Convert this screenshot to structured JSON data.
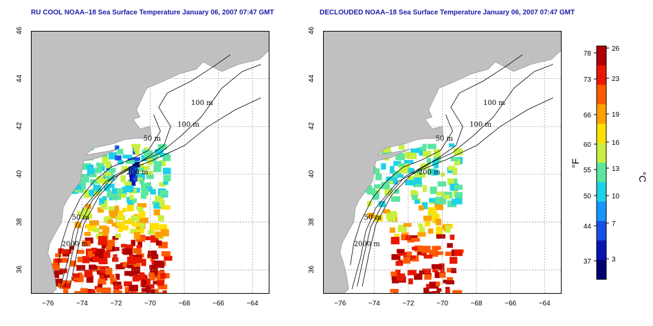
{
  "panels": [
    {
      "id": "ru-cool",
      "title": "RU COOL NOAA–18 Sea Surface Temperature January 06, 2007 07:47 GMT",
      "declouded": false
    },
    {
      "id": "declouded",
      "title": "DECLOUDED NOAA–18 Sea Surface Temperature January 06, 2007 07:47 GMT",
      "declouded": true
    }
  ],
  "axes": {
    "x_ticks": [
      "−76",
      "−74",
      "−72",
      "−70",
      "−68",
      "−66",
      "−64"
    ],
    "y_ticks": [
      "36",
      "38",
      "40",
      "42",
      "44",
      "46"
    ],
    "x_range": [
      -77,
      -63
    ],
    "y_range": [
      35,
      46
    ],
    "grid": true
  },
  "contour_labels": [
    "100 m",
    "100 m",
    "50 m",
    "200 m",
    "50 m",
    "2000 m"
  ],
  "colorbar": {
    "fahrenheit_label": "°F",
    "celsius_label": "°C",
    "fahrenheit_ticks": [
      "78",
      "73",
      "66",
      "60",
      "55",
      "50",
      "44",
      "37"
    ],
    "celsius_ticks": [
      "26",
      "23",
      "19",
      "16",
      "13",
      "10",
      "7",
      "3"
    ],
    "colors": [
      "#b00000",
      "#e81800",
      "#ff5a00",
      "#ffa000",
      "#ffe000",
      "#c8f040",
      "#5ae6a0",
      "#1ed2e6",
      "#1496ff",
      "#1450e6",
      "#0a14b4",
      "#000070"
    ]
  },
  "colors": {
    "land": "#c0c0c0",
    "ocean": "#ffffff",
    "title": "#1a1aa6",
    "grid": "#a0a0a0",
    "contour": "#000000"
  }
}
